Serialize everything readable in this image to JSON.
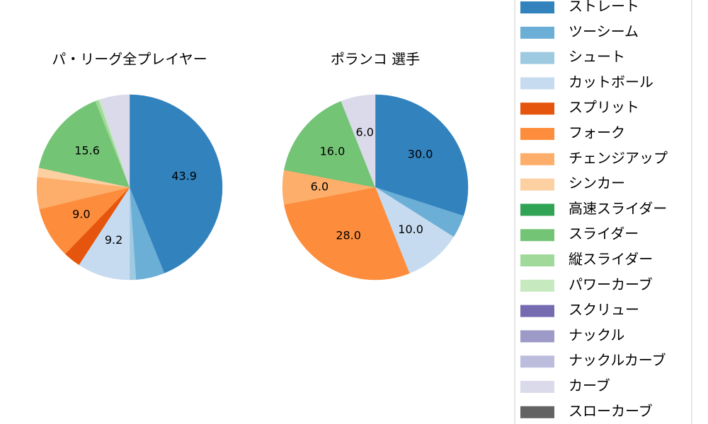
{
  "chart_data": [
    {
      "type": "pie",
      "title": "パ・リーグ全プレイヤー",
      "values": [
        43.9,
        5.0,
        1.1,
        9.2,
        3.0,
        9.0,
        5.6,
        1.6,
        0,
        15.6,
        0.6,
        0.3,
        0,
        0,
        0,
        5.1,
        0
      ],
      "value_labels": [
        "43.9",
        null,
        null,
        "9.2",
        null,
        "9.0",
        null,
        null,
        null,
        "15.6",
        null,
        null,
        null,
        null,
        null,
        null,
        null
      ]
    },
    {
      "type": "pie",
      "title": "ポランコ  選手",
      "values": [
        30.0,
        4.0,
        0,
        10.0,
        0,
        28.0,
        6.0,
        0,
        0,
        16.0,
        0,
        0,
        0,
        0,
        0,
        6.0,
        0
      ],
      "value_labels": [
        "30.0",
        null,
        null,
        "10.0",
        null,
        "28.0",
        "6.0",
        null,
        null,
        "16.0",
        null,
        null,
        null,
        null,
        null,
        "6.0",
        null
      ]
    }
  ],
  "legend": {
    "categories": [
      "ストレート",
      "ツーシーム",
      "シュート",
      "カットボール",
      "スプリット",
      "フォーク",
      "チェンジアップ",
      "シンカー",
      "高速スライダー",
      "スライダー",
      "縦スライダー",
      "パワーカーブ",
      "スクリュー",
      "ナックル",
      "ナックルカーブ",
      "カーブ",
      "スローカーブ"
    ],
    "colors": [
      "#3182bd",
      "#6baed6",
      "#9ecae1",
      "#c6dbef",
      "#e6550d",
      "#fd8d3c",
      "#fdae6b",
      "#fdd0a2",
      "#31a354",
      "#74c476",
      "#a1d99b",
      "#c7e9c0",
      "#756bb1",
      "#9e9ac8",
      "#bcbddc",
      "#dadaeb",
      "#636363"
    ]
  }
}
